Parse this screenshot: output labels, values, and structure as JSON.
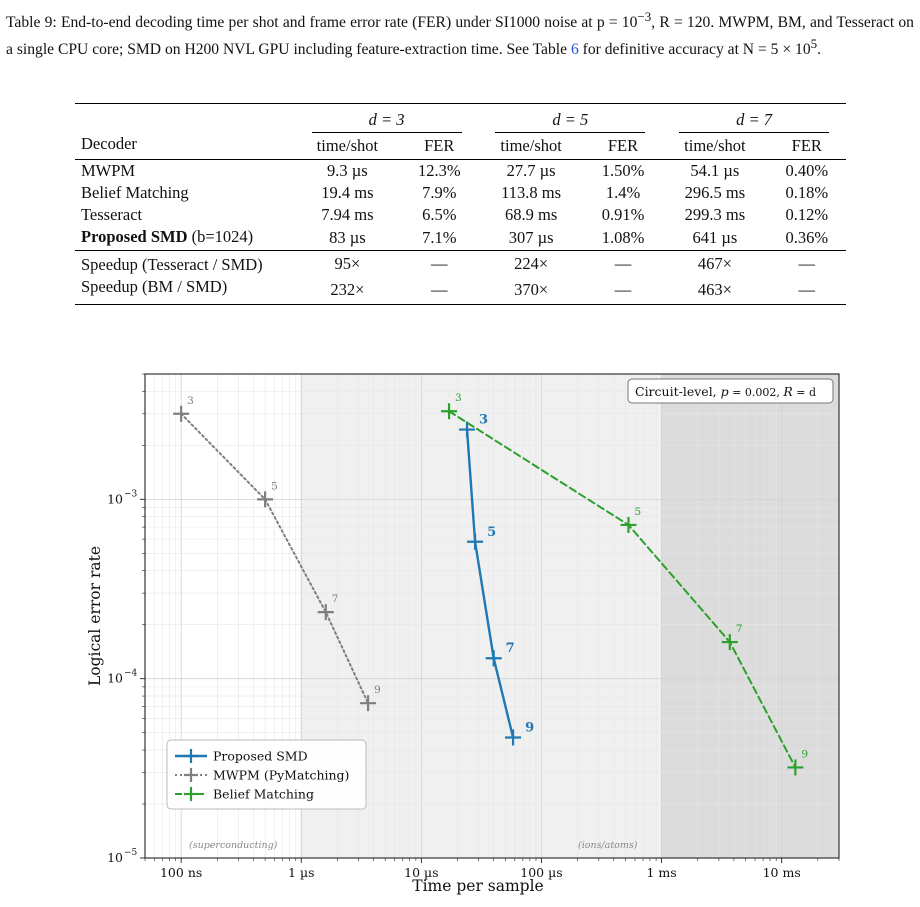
{
  "caption": {
    "label": "Table 9:",
    "text_1": "End-to-end decoding time per shot and frame error rate (FER) under SI1000 noise at p = 10",
    "exp_1": "−3",
    "text_2": ", R = 120. MWPM, BM, and Tesseract on a single CPU core; SMD on H200 NVL GPU including feature-extraction time. See Table ",
    "ref": "6",
    "text_3": " for definitive accuracy at N = 5 × 10",
    "exp_2": "5",
    "text_4": "."
  },
  "table": {
    "groups": [
      "d = 3",
      "d = 5",
      "d = 7"
    ],
    "headers": [
      "Decoder",
      "time/shot",
      "FER",
      "time/shot",
      "FER",
      "time/shot",
      "FER"
    ],
    "rows": [
      [
        "MWPM",
        "9.3 µs",
        "12.3%",
        "27.7 µs",
        "1.50%",
        "54.1 µs",
        "0.40%"
      ],
      [
        "Belief Matching",
        "19.4 ms",
        "7.9%",
        "113.8 ms",
        "1.4%",
        "296.5 ms",
        "0.18%"
      ],
      [
        "Tesseract",
        "7.94 ms",
        "6.5%",
        "68.9 ms",
        "0.91%",
        "299.3 ms",
        "0.12%"
      ]
    ],
    "proposed": {
      "name": "Proposed SMD",
      "suffix": "(b=1024)",
      "cells": [
        "83 µs",
        "7.1%",
        "307 µs",
        "1.08%",
        "641 µs",
        "0.36%"
      ]
    },
    "speedup_rows": [
      [
        "Speedup (Tesseract / SMD)",
        "95×",
        "—",
        "224×",
        "—",
        "467×",
        "—"
      ],
      [
        "Speedup (BM / SMD)",
        "232×",
        "—",
        "370×",
        "—",
        "463×",
        "—"
      ]
    ]
  },
  "chart_data": {
    "type": "line",
    "xlabel": "Time per sample",
    "ylabel": "Logical error rate",
    "xscale": "log",
    "yscale": "log",
    "xlim_seconds": [
      5e-08,
      0.03
    ],
    "ylim": [
      1e-05,
      0.005
    ],
    "x_ticks": [
      "100 ns",
      "1 µs",
      "10 µs",
      "100 µs",
      "1 ms",
      "10 ms"
    ],
    "y_ticks": [
      "10",
      "10",
      "10"
    ],
    "y_tick_exponents": [
      "−3",
      "−4",
      "−5"
    ],
    "info_box": {
      "text": "Circuit-level, ",
      "p": "p",
      "p_val": " = 0.002, ",
      "r": "R",
      "r_val": " = d"
    },
    "regions": [
      {
        "label": "(superconducting)",
        "x_range_seconds": [
          5e-08,
          1e-06
        ],
        "shade": "#ffffff"
      },
      {
        "label": "(ions/atoms)",
        "x_range_seconds": [
          1e-06,
          0.001
        ],
        "shade": "#f0f0f0"
      },
      {
        "label": "",
        "x_range_seconds": [
          0.001,
          0.03
        ],
        "shade": "#dcdcdc"
      }
    ],
    "series": [
      {
        "name": "Proposed SMD",
        "color": "#1f77b4",
        "style": "solid",
        "x_seconds": [
          2.4e-05,
          2.8e-05,
          4e-05,
          5.8e-05
        ],
        "y": [
          0.00245,
          0.00058,
          0.00013,
          4.7e-05
        ],
        "labels": [
          "3",
          "5",
          "7",
          "9"
        ]
      },
      {
        "name": "MWPM (PyMatching)",
        "color": "#7f7f7f",
        "style": "dotted",
        "x_seconds": [
          1e-07,
          5e-07,
          1.6e-06,
          3.6e-06
        ],
        "y": [
          0.003,
          0.001,
          0.000235,
          7.3e-05
        ],
        "labels": [
          "3",
          "5",
          "7",
          "9"
        ]
      },
      {
        "name": "Belief Matching",
        "color": "#2ca02c",
        "style": "dashed",
        "x_seconds": [
          1.7e-05,
          0.00053,
          0.0037,
          0.013
        ],
        "y": [
          0.0031,
          0.00072,
          0.00016,
          3.2e-05
        ],
        "labels": [
          "3",
          "5",
          "7",
          "9"
        ]
      }
    ],
    "legend_placement": "lower-left"
  }
}
